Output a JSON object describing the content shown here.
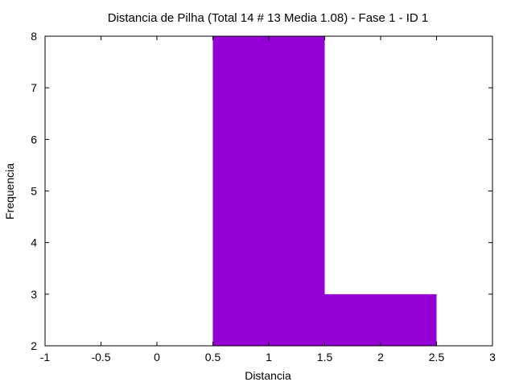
{
  "chart_data": {
    "type": "bar",
    "title": "Distancia de Pilha (Total 14 # 13 Media 1.08) - Fase  1 - ID 1",
    "xlabel": "Distancia",
    "ylabel": "Frequencia",
    "xlim": [
      -1,
      3
    ],
    "ylim": [
      2,
      8
    ],
    "xticks": [
      "-1",
      "-0.5",
      "0",
      "0.5",
      "1",
      "1.5",
      "2",
      "2.5",
      "3"
    ],
    "yticks": [
      "2",
      "3",
      "4",
      "5",
      "6",
      "7",
      "8"
    ],
    "bars": [
      {
        "x": 1,
        "width": 1,
        "value": 8
      },
      {
        "x": 2,
        "width": 1,
        "value": 3
      }
    ],
    "bar_color": "#9400d3",
    "grid": false,
    "legend": "none"
  }
}
